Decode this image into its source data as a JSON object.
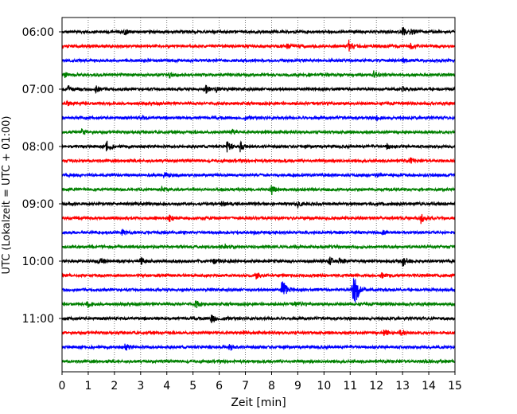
{
  "chart_data": {
    "type": "line",
    "subtype": "helicorder",
    "xlabel": "Zeit  [min]",
    "ylabel": "UTC (Lokalzeit = UTC + 01:00)",
    "xlim": [
      0,
      15
    ],
    "x_ticks": [
      "0",
      "1",
      "2",
      "3",
      "4",
      "5",
      "6",
      "7",
      "8",
      "9",
      "10",
      "11",
      "12",
      "13",
      "14",
      "15"
    ],
    "y_ticks": [
      "06:00",
      "07:00",
      "08:00",
      "09:00",
      "10:00",
      "11:00"
    ],
    "traces_per_hour": 4,
    "grid": "vertical-dotted",
    "colors": [
      "#000000",
      "#ff0000",
      "#0000ff",
      "#008000"
    ],
    "noise_level": 1.6,
    "traces": [
      {
        "events": [
          [
            2.4,
            4
          ],
          [
            13.0,
            5
          ],
          [
            13.3,
            4
          ]
        ]
      },
      {
        "events": [
          [
            8.6,
            3
          ],
          [
            10.95,
            8
          ],
          [
            13.3,
            3
          ]
        ]
      },
      {
        "events": [
          [
            13.0,
            3
          ]
        ]
      },
      {
        "events": [
          [
            0.1,
            3
          ],
          [
            4.1,
            4
          ],
          [
            11.9,
            5
          ]
        ]
      },
      {
        "events": [
          [
            0.25,
            4
          ],
          [
            1.3,
            4
          ],
          [
            5.5,
            5
          ],
          [
            5.9,
            3
          ],
          [
            13.0,
            3
          ]
        ]
      },
      {
        "events": [
          [
            0.2,
            3
          ]
        ]
      },
      {
        "events": [
          [
            3.0,
            3
          ],
          [
            7.0,
            4
          ],
          [
            12.0,
            3
          ]
        ]
      },
      {
        "events": [
          [
            0.75,
            4
          ],
          [
            6.5,
            3
          ]
        ]
      },
      {
        "events": [
          [
            1.7,
            7
          ],
          [
            6.3,
            6
          ],
          [
            6.8,
            6
          ],
          [
            12.4,
            3
          ]
        ]
      },
      {
        "events": [
          [
            13.3,
            4
          ]
        ]
      },
      {
        "events": [
          [
            3.9,
            3
          ],
          [
            12.0,
            3
          ]
        ]
      },
      {
        "events": [
          [
            3.8,
            3
          ],
          [
            8.0,
            6
          ]
        ]
      },
      {
        "events": [
          [
            6.1,
            3
          ],
          [
            9.0,
            3
          ]
        ]
      },
      {
        "events": [
          [
            4.1,
            4
          ],
          [
            13.7,
            6
          ]
        ]
      },
      {
        "events": [
          [
            2.3,
            3
          ],
          [
            12.2,
            3
          ]
        ]
      },
      {
        "events": [
          [
            6.2,
            4
          ]
        ]
      },
      {
        "events": [
          [
            1.4,
            4
          ],
          [
            3.0,
            5
          ],
          [
            5.8,
            3
          ],
          [
            10.2,
            6
          ],
          [
            10.6,
            4
          ],
          [
            13.0,
            7
          ]
        ]
      },
      {
        "events": [
          [
            7.4,
            5
          ],
          [
            12.2,
            3
          ]
        ]
      },
      {
        "events": [
          [
            8.4,
            18
          ],
          [
            11.1,
            20
          ],
          [
            11.2,
            12
          ]
        ]
      },
      {
        "events": [
          [
            0.95,
            5
          ],
          [
            5.1,
            5
          ],
          [
            8.9,
            3
          ]
        ]
      },
      {
        "events": [
          [
            5.7,
            7
          ],
          [
            6.2,
            3
          ]
        ]
      },
      {
        "events": [
          [
            12.3,
            5
          ],
          [
            12.9,
            3
          ]
        ]
      },
      {
        "events": [
          [
            2.4,
            5
          ],
          [
            6.4,
            5
          ]
        ]
      },
      {
        "events": [
          [
            13.8,
            3
          ]
        ]
      }
    ]
  }
}
